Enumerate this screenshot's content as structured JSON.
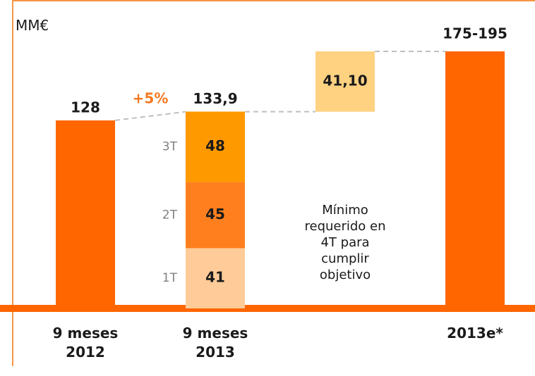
{
  "chart_data": {
    "type": "waterfall",
    "unit_label": "MM€",
    "categories": [
      "9 meses 2012",
      "9 meses 2013",
      null,
      "2013e*"
    ],
    "totals": {
      "values": [
        128,
        133.9,
        null,
        175
      ],
      "value_labels": [
        "128",
        "133,9",
        null,
        "175-195"
      ],
      "color": "#ff6600"
    },
    "series": [
      {
        "name": "1T",
        "color": "#ffcc99",
        "values": [
          null,
          41,
          null,
          null
        ]
      },
      {
        "name": "2T",
        "color": "#ff7f1f",
        "values": [
          null,
          45,
          null,
          null
        ]
      },
      {
        "name": "3T",
        "color": "#ff9900",
        "values": [
          null,
          48,
          null,
          null
        ]
      }
    ],
    "increment": {
      "values": [
        null,
        null,
        41.1,
        null
      ],
      "value_labels": [
        null,
        null,
        "41,10",
        null
      ],
      "color": "#ffd282"
    },
    "growth": {
      "value": 5,
      "label": "+5%",
      "color": "#f47920"
    },
    "annotation": "Mínimo requerido en 4T para cumplir objetivo"
  }
}
